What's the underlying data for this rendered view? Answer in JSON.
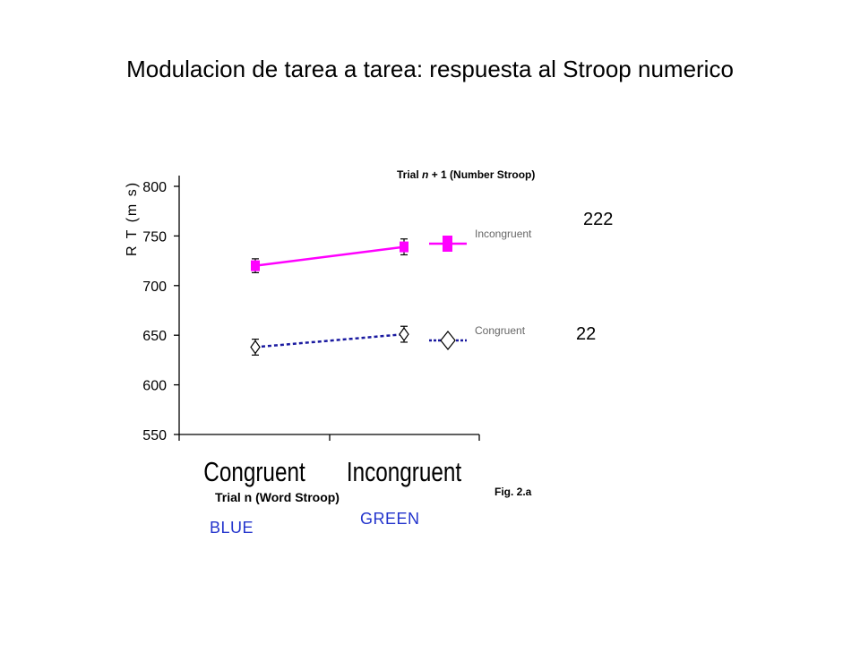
{
  "slide_title": "Modulacion de tarea a tarea: respuesta al Stroop numerico",
  "panel_title_pre": "Trial ",
  "panel_title_n": "n",
  "panel_title_post": " + 1 (Number Stroop)",
  "fig_label": "Fig. 2.a",
  "color_words": {
    "blue": "BLUE",
    "green": "GREEN",
    "color": "#2233cc"
  },
  "side_numbers": {
    "incongruent": "222",
    "congruent": "22"
  },
  "chart_data": {
    "type": "line",
    "ylabel": "R T (m s)",
    "xlabel": "Trial n (Word Stroop)",
    "categories": [
      "Congruent",
      "Incongruent"
    ],
    "ylim": [
      550,
      800
    ],
    "yticks": [
      550,
      600,
      650,
      700,
      750,
      800
    ],
    "legend_position": "right",
    "series": [
      {
        "name": "Incongruent",
        "values": [
          720,
          739
        ],
        "errors": [
          7,
          8
        ],
        "color": "#ff00ff",
        "style": "solid",
        "marker": "square"
      },
      {
        "name": "Congruent",
        "values": [
          638,
          651
        ],
        "errors": [
          8,
          8
        ],
        "color": "#1a1aa0",
        "style": "dashed",
        "marker": "diamond"
      }
    ]
  }
}
